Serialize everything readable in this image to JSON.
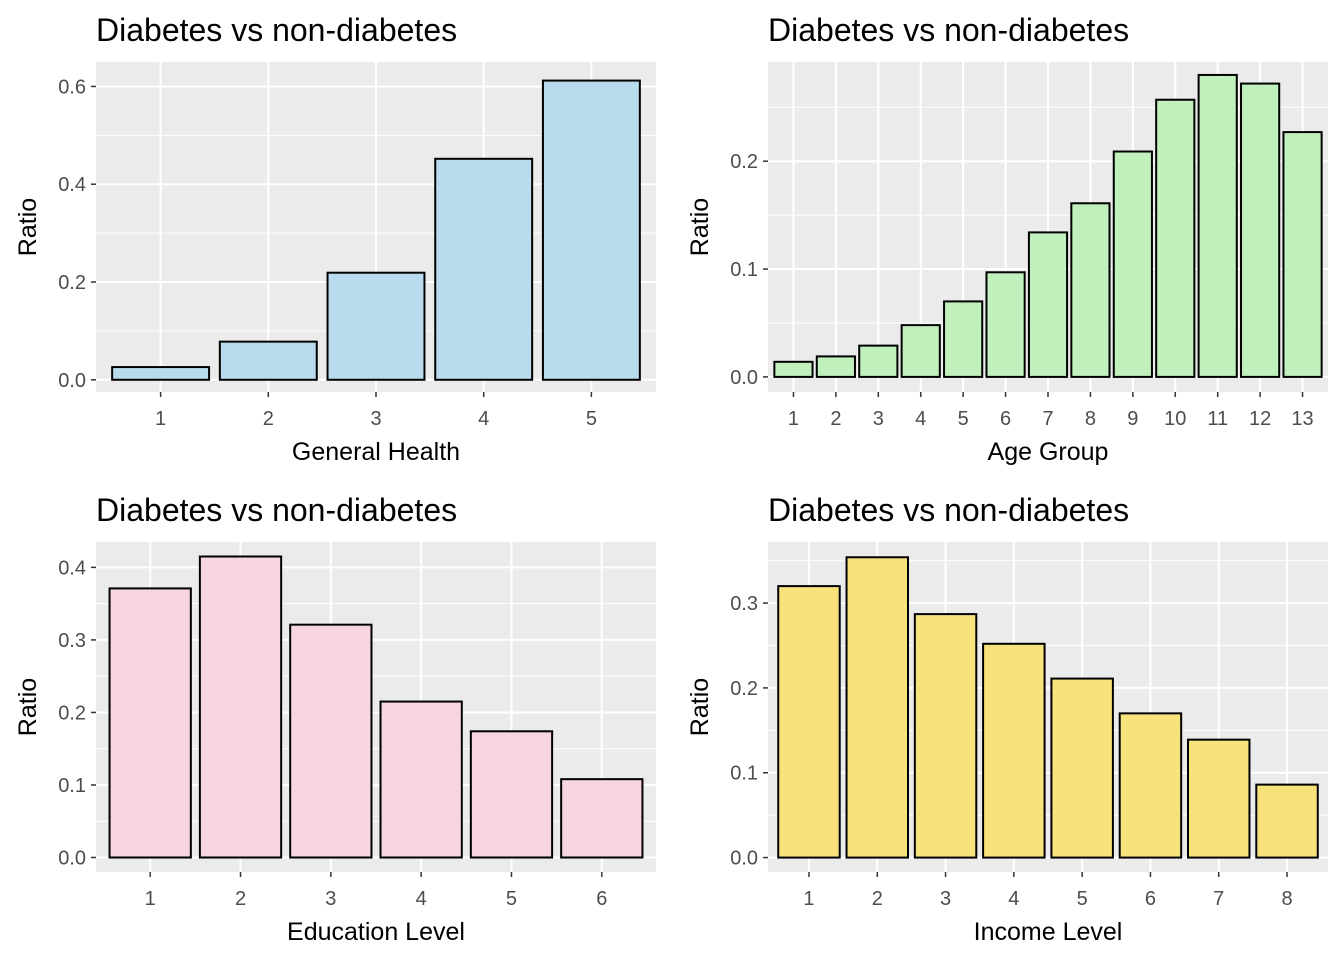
{
  "chart_data": [
    {
      "type": "bar",
      "title": "Diabetes vs non-diabetes",
      "xlabel": "General Health",
      "ylabel": "Ratio",
      "categories": [
        "1",
        "2",
        "3",
        "4",
        "5"
      ],
      "values": [
        0.026,
        0.078,
        0.219,
        0.452,
        0.612
      ],
      "ylim": [
        -0.025,
        0.65
      ],
      "yticks": [
        0.0,
        0.2,
        0.4,
        0.6
      ],
      "ytick_labels": [
        "0.0",
        "0.2",
        "0.4",
        "0.6"
      ],
      "fill_color": "#b8dced",
      "grid": true,
      "legend": "none"
    },
    {
      "type": "bar",
      "title": "Diabetes vs non-diabetes",
      "xlabel": "Age Group",
      "ylabel": "Ratio",
      "categories": [
        "1",
        "2",
        "3",
        "4",
        "5",
        "6",
        "7",
        "8",
        "9",
        "10",
        "11",
        "12",
        "13"
      ],
      "values": [
        0.014,
        0.019,
        0.029,
        0.048,
        0.07,
        0.097,
        0.134,
        0.161,
        0.209,
        0.257,
        0.28,
        0.272,
        0.227
      ],
      "ylim": [
        -0.014,
        0.292
      ],
      "yticks": [
        0.0,
        0.1,
        0.2
      ],
      "ytick_labels": [
        "0.0",
        "0.1",
        "0.2"
      ],
      "fill_color": "#c0f0bc",
      "grid": true,
      "legend": "none"
    },
    {
      "type": "bar",
      "title": "Diabetes vs non-diabetes",
      "xlabel": "Education Level",
      "ylabel": "Ratio",
      "categories": [
        "1",
        "2",
        "3",
        "4",
        "5",
        "6"
      ],
      "values": [
        0.371,
        0.415,
        0.321,
        0.215,
        0.174,
        0.108
      ],
      "ylim": [
        -0.02,
        0.435
      ],
      "yticks": [
        0.0,
        0.1,
        0.2,
        0.3,
        0.4
      ],
      "ytick_labels": [
        "0.0",
        "0.1",
        "0.2",
        "0.3",
        "0.4"
      ],
      "fill_color": "#f7d5de",
      "grid": true,
      "legend": "none"
    },
    {
      "type": "bar",
      "title": "Diabetes vs non-diabetes",
      "xlabel": "Income Level",
      "ylabel": "Ratio",
      "categories": [
        "1",
        "2",
        "3",
        "4",
        "5",
        "6",
        "7",
        "8"
      ],
      "values": [
        0.32,
        0.354,
        0.287,
        0.252,
        0.211,
        0.17,
        0.139,
        0.086
      ],
      "ylim": [
        -0.017,
        0.372
      ],
      "yticks": [
        0.0,
        0.1,
        0.2,
        0.3
      ],
      "ytick_labels": [
        "0.0",
        "0.1",
        "0.2",
        "0.3"
      ],
      "fill_color": "#f7e27c",
      "grid": true,
      "legend": "none"
    }
  ]
}
